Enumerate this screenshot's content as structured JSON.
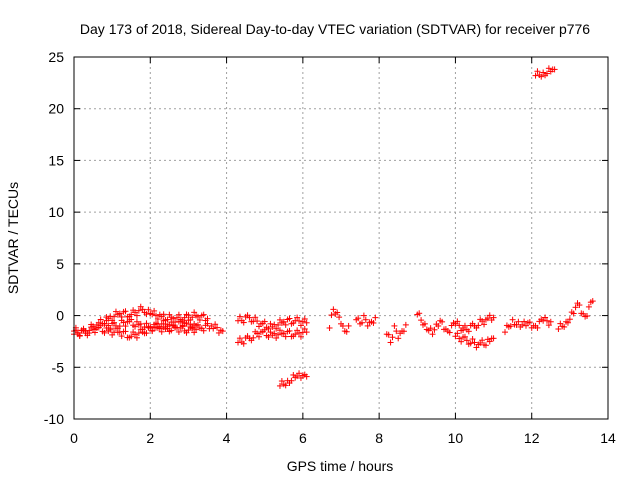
{
  "chart_data": {
    "type": "scatter",
    "title": "Day 173 of 2018, Sidereal Day-to-day VTEC variation (SDTVAR) for receiver p776",
    "xlabel": "GPS time / hours",
    "ylabel": "SDTVAR / TECUs",
    "xlim": [
      0,
      14
    ],
    "ylim": [
      -10,
      25
    ],
    "xticks": [
      0,
      2,
      4,
      6,
      8,
      10,
      12,
      14
    ],
    "yticks": [
      -10,
      -5,
      0,
      5,
      10,
      15,
      20,
      25
    ],
    "grid": true,
    "marker": "+",
    "series_color": "#ff0000",
    "segments": [
      {
        "name": "upper-band-early",
        "x": [
          0.0,
          0.3,
          0.6,
          0.9,
          1.2,
          1.5,
          1.8,
          2.0,
          2.3,
          2.6,
          2.9,
          3.2,
          3.5
        ],
        "y": [
          -1.8,
          -1.5,
          -0.9,
          -0.3,
          0.2,
          0.1,
          0.6,
          0.2,
          -0.1,
          -0.3,
          -0.2,
          0.0,
          -0.3
        ]
      },
      {
        "name": "lower-band-early",
        "x": [
          0.0,
          0.3,
          0.6,
          0.9,
          1.2,
          1.5,
          1.8,
          2.1,
          2.4,
          2.7,
          3.0,
          3.3,
          3.6,
          3.9
        ],
        "y": [
          -1.5,
          -1.7,
          -1.2,
          -1.5,
          -1.6,
          -2.0,
          -1.6,
          -1.1,
          -1.3,
          -1.2,
          -1.4,
          -1.2,
          -1.0,
          -1.5
        ]
      },
      {
        "name": "middle-band-early",
        "x": [
          0.8,
          1.1,
          1.4,
          1.7,
          2.0,
          2.3,
          2.6,
          2.9,
          3.2
        ],
        "y": [
          -0.8,
          -1.0,
          -0.6,
          -0.9,
          -1.2,
          -0.8,
          -1.0,
          -0.7,
          -1.0
        ]
      },
      {
        "name": "segment-4-5",
        "x": [
          4.3,
          4.6,
          4.9,
          5.2,
          5.5,
          5.8,
          6.1
        ],
        "y": [
          -0.5,
          -0.2,
          -0.8,
          -1.1,
          -0.6,
          -0.5,
          -0.7
        ]
      },
      {
        "name": "segment-4-5-low",
        "x": [
          4.3,
          4.6,
          4.9,
          5.2,
          5.5,
          5.8,
          6.1
        ],
        "y": [
          -2.6,
          -2.2,
          -1.6,
          -1.9,
          -1.7,
          -1.8,
          -1.6
        ]
      },
      {
        "name": "dip-6",
        "x": [
          5.4,
          5.6,
          5.8,
          6.0,
          6.1
        ],
        "y": [
          -6.8,
          -6.3,
          -6.0,
          -5.8,
          -5.9
        ]
      },
      {
        "name": "segment-7",
        "x": [
          6.7,
          6.8,
          6.9,
          7.0,
          7.1,
          7.2
        ],
        "y": [
          -1.2,
          0.6,
          0.3,
          -0.8,
          -1.5,
          -1.0
        ]
      },
      {
        "name": "segment-7-5",
        "x": [
          7.4,
          7.5,
          7.6,
          7.7,
          7.8,
          7.9
        ],
        "y": [
          -0.4,
          -0.8,
          0.0,
          -1.0,
          -0.6,
          -0.2
        ]
      },
      {
        "name": "segment-8-5",
        "x": [
          8.2,
          8.3,
          8.4,
          8.5,
          8.6,
          8.7
        ],
        "y": [
          -1.8,
          -2.6,
          -1.0,
          -2.2,
          -1.5,
          -0.9
        ]
      },
      {
        "name": "segment-9-10",
        "x": [
          9.0,
          9.2,
          9.4,
          9.6,
          9.8,
          10.0,
          10.2
        ],
        "y": [
          0.1,
          -0.8,
          -1.8,
          -0.5,
          -1.5,
          -0.8,
          -1.2
        ]
      },
      {
        "name": "segment-10-11-low",
        "x": [
          10.0,
          10.3,
          10.6,
          10.9,
          11.0
        ],
        "y": [
          -2.0,
          -2.4,
          -2.8,
          -2.5,
          -2.2
        ]
      },
      {
        "name": "segment-10-11-high",
        "x": [
          10.2,
          10.5,
          10.8,
          11.0
        ],
        "y": [
          -1.4,
          -1.0,
          -0.4,
          -0.2
        ]
      },
      {
        "name": "segment-11-12",
        "x": [
          11.3,
          11.5,
          11.7,
          11.9,
          12.1,
          12.3,
          12.5
        ],
        "y": [
          -1.6,
          -0.4,
          -1.1,
          -0.7,
          -1.0,
          -0.5,
          -0.6
        ]
      },
      {
        "name": "segment-13",
        "x": [
          12.7,
          12.9,
          13.1,
          13.2,
          13.4,
          13.6
        ],
        "y": [
          -1.3,
          -0.6,
          0.2,
          1.2,
          -0.1,
          1.4
        ]
      },
      {
        "name": "outlier-23",
        "x": [
          12.1,
          12.3,
          12.5,
          12.6
        ],
        "y": [
          23.2,
          23.5,
          23.6,
          23.8
        ]
      }
    ]
  }
}
